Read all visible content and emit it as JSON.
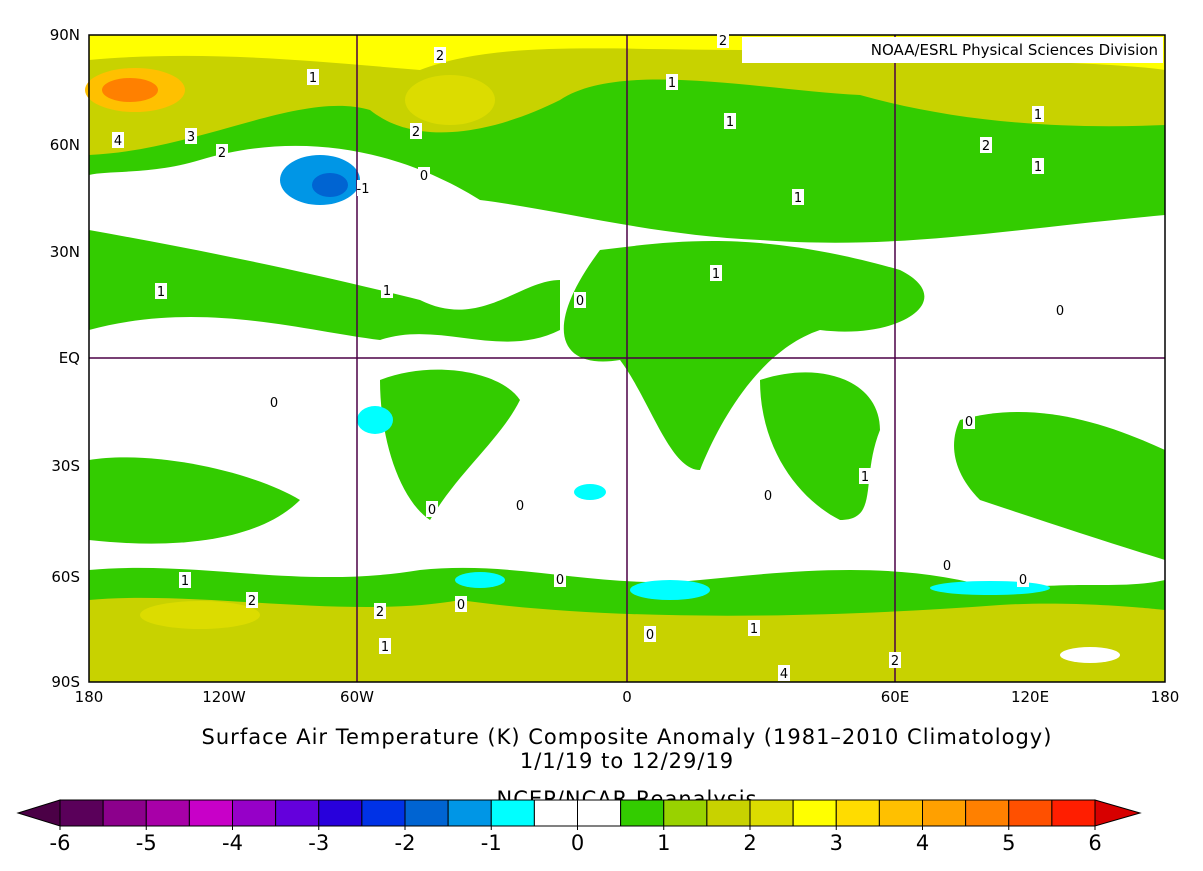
{
  "header": {
    "source": "NOAA/ESRL Physical Sciences Division"
  },
  "map": {
    "lat_labels": [
      "90N",
      "60N",
      "30N",
      "EQ",
      "30S",
      "60S",
      "90S"
    ],
    "lon_labels": [
      "180",
      "120W",
      "60W",
      "0",
      "60E",
      "120E",
      "180"
    ],
    "contour_labels": [
      2,
      1,
      1,
      4,
      3,
      2,
      2,
      1,
      1,
      2,
      1,
      1,
      -1,
      0,
      1,
      1,
      1,
      0,
      0,
      0,
      1,
      0,
      0,
      0,
      1,
      2,
      2,
      0,
      0,
      0,
      0,
      0,
      1,
      1,
      4,
      2,
      2,
      0
    ]
  },
  "caption": {
    "title": "Surface Air Temperature (K) Composite Anomaly (1981–2010 Climatology)",
    "period": "1/1/19  to 12/29/19",
    "source": "NCEP/NCAR Reanalysis"
  },
  "colorbar": {
    "ticks": [
      -6,
      -5,
      -4,
      -3,
      -2,
      -1,
      0,
      1,
      2,
      3,
      4,
      5,
      6
    ],
    "low_color": "#4b0046",
    "high_color": "#d70000",
    "colors": [
      "#5a005a",
      "#8c008c",
      "#a800a8",
      "#c800c8",
      "#9600c8",
      "#6400dc",
      "#2800dc",
      "#0032e6",
      "#0064d2",
      "#0096e6",
      "#00ffff",
      "#ffffff",
      "#ffffff",
      "#33cc00",
      "#99d200",
      "#c8d200",
      "#dcdc00",
      "#ffff00",
      "#ffdc00",
      "#ffc000",
      "#ffa000",
      "#ff8000",
      "#ff5000",
      "#ff1e00"
    ]
  }
}
